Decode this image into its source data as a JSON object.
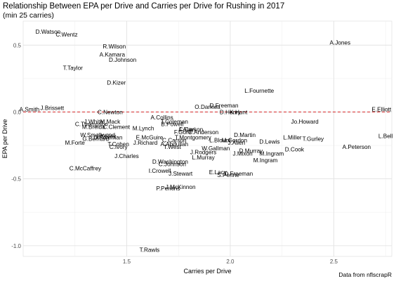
{
  "chart_data": {
    "type": "scatter",
    "title": "Relationship Between EPA per Drive and Carries per Drive for Rushing in 2017",
    "subtitle": "(min 25 carries)",
    "xlabel": "Carries per Drive",
    "ylabel": "EPA per Drive",
    "caption": "Data from nflscrapR",
    "xlim": [
      1.0,
      2.78
    ],
    "ylim": [
      -1.08,
      0.68
    ],
    "xticks": [
      1.5,
      2.0,
      2.5
    ],
    "yticks": [
      0.5,
      0.0,
      -0.5,
      -1.0
    ],
    "xtick_labels": [
      "1.5",
      "2.0",
      "2.5"
    ],
    "ytick_labels": [
      "0.5",
      "0.0",
      "-0.5",
      "-1.0"
    ],
    "grid": true,
    "reference_line": {
      "y": 0,
      "color": "#d62728",
      "style": "dashed"
    },
    "points": [
      {
        "label": "D.Watson",
        "x": 1.12,
        "y": 0.6
      },
      {
        "label": "C.Wentz",
        "x": 1.21,
        "y": 0.58
      },
      {
        "label": "R.Wilson",
        "x": 1.44,
        "y": 0.49
      },
      {
        "label": "A.Jones",
        "x": 2.53,
        "y": 0.52
      },
      {
        "label": "A.Kamara",
        "x": 1.43,
        "y": 0.43
      },
      {
        "label": "D.Johnson",
        "x": 1.48,
        "y": 0.39
      },
      {
        "label": "T.Taylor",
        "x": 1.24,
        "y": 0.33
      },
      {
        "label": "D.Kizer",
        "x": 1.45,
        "y": 0.22
      },
      {
        "label": "L.Fournette",
        "x": 2.14,
        "y": 0.16
      },
      {
        "label": "D.Freeman",
        "x": 1.97,
        "y": 0.05
      },
      {
        "label": "O.Darkwa",
        "x": 1.89,
        "y": 0.04
      },
      {
        "label": "D.Henry",
        "x": 2.0,
        "y": 0.0
      },
      {
        "label": "K.Hunt",
        "x": 2.04,
        "y": 0.0
      },
      {
        "label": "A.Smith",
        "x": 1.03,
        "y": 0.02
      },
      {
        "label": "J.Brissett",
        "x": 1.14,
        "y": 0.03
      },
      {
        "label": "C.Newton",
        "x": 1.42,
        "y": 0.0
      },
      {
        "label": "E.Elliott",
        "x": 2.73,
        "y": 0.02
      },
      {
        "label": "A.Collins",
        "x": 1.67,
        "y": -0.04
      },
      {
        "label": "T.Coleman",
        "x": 1.73,
        "y": -0.07
      },
      {
        "label": "B.Powell",
        "x": 1.72,
        "y": -0.09
      },
      {
        "label": "J.White",
        "x": 1.34,
        "y": -0.07
      },
      {
        "label": "M.Mack",
        "x": 1.42,
        "y": -0.07
      },
      {
        "label": "C.Thompson",
        "x": 1.33,
        "y": -0.09
      },
      {
        "label": "C.Clement",
        "x": 1.45,
        "y": -0.11
      },
      {
        "label": "M.Breida",
        "x": 1.34,
        "y": -0.11
      },
      {
        "label": "M.Lynch",
        "x": 1.58,
        "y": -0.12
      },
      {
        "label": "J.Ajayi",
        "x": 1.79,
        "y": -0.13
      },
      {
        "label": "C.Carson",
        "x": 1.81,
        "y": -0.13
      },
      {
        "label": "F.Gore",
        "x": 1.77,
        "y": -0.15
      },
      {
        "label": "C.Anderson",
        "x": 1.87,
        "y": -0.15
      },
      {
        "label": "Jo.Howard",
        "x": 2.36,
        "y": -0.07
      },
      {
        "label": "D.Martin",
        "x": 2.07,
        "y": -0.17
      },
      {
        "label": "W.Smallwood",
        "x": 1.36,
        "y": -0.17
      },
      {
        "label": "J.Kelley",
        "x": 1.4,
        "y": -0.18
      },
      {
        "label": "D.Foreman",
        "x": 1.41,
        "y": -0.19
      },
      {
        "label": "G.Bernard",
        "x": 1.35,
        "y": -0.2
      },
      {
        "label": "E.McGuire",
        "x": 1.61,
        "y": -0.19
      },
      {
        "label": "T.Montgomery",
        "x": 1.82,
        "y": -0.19
      },
      {
        "label": "C.Carson",
        "x": 1.73,
        "y": -0.21
      },
      {
        "label": "L.Bell",
        "x": 2.75,
        "y": -0.18
      },
      {
        "label": "L.Miller",
        "x": 2.3,
        "y": -0.19
      },
      {
        "label": "T.Gurley",
        "x": 2.4,
        "y": -0.2
      },
      {
        "label": "L.Blount",
        "x": 1.95,
        "y": -0.21
      },
      {
        "label": "M.Gordon",
        "x": 2.02,
        "y": -0.21
      },
      {
        "label": "D.Lewis",
        "x": 2.19,
        "y": -0.22
      },
      {
        "label": "M.Forte",
        "x": 1.25,
        "y": -0.23
      },
      {
        "label": "T.Cohen",
        "x": 1.46,
        "y": -0.24
      },
      {
        "label": "C.Ivory",
        "x": 1.46,
        "y": -0.26
      },
      {
        "label": "J.Richard",
        "x": 1.59,
        "y": -0.23
      },
      {
        "label": "A.Abdullah",
        "x": 1.73,
        "y": -0.24
      },
      {
        "label": "T.West",
        "x": 1.72,
        "y": -0.26
      },
      {
        "label": "J.Allen",
        "x": 2.03,
        "y": -0.23
      },
      {
        "label": "A.Peterson",
        "x": 2.61,
        "y": -0.26
      },
      {
        "label": "W.Gallman",
        "x": 1.93,
        "y": -0.27
      },
      {
        "label": "J.Rodgers",
        "x": 1.87,
        "y": -0.3
      },
      {
        "label": "D.Cook",
        "x": 2.31,
        "y": -0.28
      },
      {
        "label": "D.Murray",
        "x": 2.1,
        "y": -0.29
      },
      {
        "label": "J.Mixon",
        "x": 2.06,
        "y": -0.31
      },
      {
        "label": "M.Ingram",
        "x": 2.2,
        "y": -0.31
      },
      {
        "label": "J.Charles",
        "x": 1.5,
        "y": -0.33
      },
      {
        "label": "L.Murray",
        "x": 1.87,
        "y": -0.34
      },
      {
        "label": "M.Ingram",
        "x": 2.17,
        "y": -0.36
      },
      {
        "label": "D.Washington",
        "x": 1.71,
        "y": -0.37
      },
      {
        "label": "C.Johnson",
        "x": 1.72,
        "y": -0.39
      },
      {
        "label": "C.McCaffrey",
        "x": 1.3,
        "y": -0.42
      },
      {
        "label": "I.Crowell",
        "x": 1.66,
        "y": -0.44
      },
      {
        "label": "E.Lacy",
        "x": 1.94,
        "y": -0.45
      },
      {
        "label": "J.Stewart",
        "x": 1.76,
        "y": -0.46
      },
      {
        "label": "S.Perine",
        "x": 1.99,
        "y": -0.47
      },
      {
        "label": "D.Freeman",
        "x": 2.04,
        "y": -0.46
      },
      {
        "label": "J.McKinnon",
        "x": 1.76,
        "y": -0.56
      },
      {
        "label": "P.Perkins",
        "x": 1.7,
        "y": -0.57
      },
      {
        "label": "T.Rawls",
        "x": 1.61,
        "y": -1.03
      }
    ]
  }
}
